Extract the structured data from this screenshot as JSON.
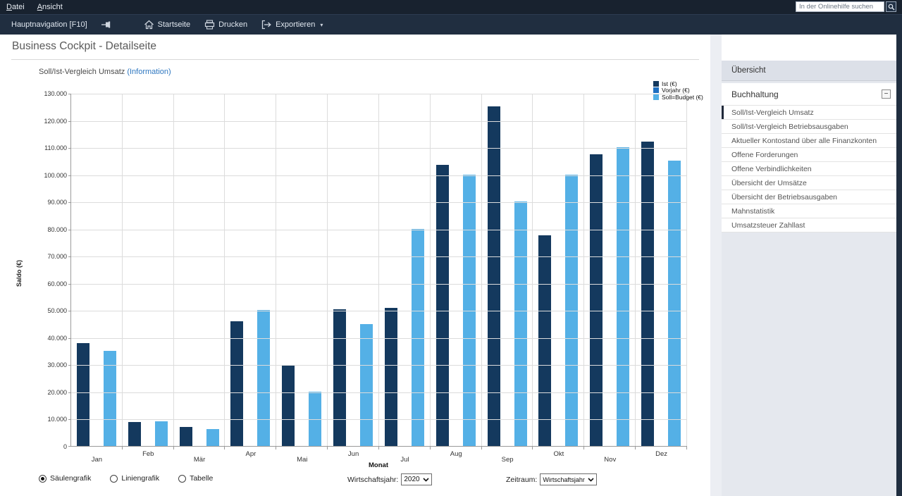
{
  "menu": {
    "items": [
      "Datei",
      "Ansicht"
    ]
  },
  "search": {
    "placeholder": "In der Onlinehilfe suchen",
    "icon": "magnifier-icon"
  },
  "toolbar": {
    "hauptnavigation": "Hauptnavigation [F10]",
    "startseite": "Startseite",
    "drucken": "Drucken",
    "exportieren": "Exportieren",
    "caret": "▾"
  },
  "page": {
    "title": "Business Cockpit - Detailseite"
  },
  "chart_header": {
    "title": "Soll/Ist-Vergleich Umsatz",
    "info_link": "(Information)"
  },
  "chart_data": {
    "type": "bar",
    "title": "Soll/Ist-Vergleich Umsatz",
    "categories": [
      "Jan",
      "Feb",
      "Mär",
      "Apr",
      "Mai",
      "Jun",
      "Jul",
      "Aug",
      "Sep",
      "Okt",
      "Nov",
      "Dez"
    ],
    "series": [
      {
        "name": "Ist (€)",
        "color": "#14395e",
        "values": [
          37800,
          8700,
          7000,
          46000,
          29500,
          50300,
          50800,
          103500,
          125000,
          77500,
          107500,
          112000
        ]
      },
      {
        "name": "Vorjahr (€)",
        "color": "#1e6fc0",
        "values": [
          0,
          0,
          0,
          0,
          0,
          0,
          0,
          0,
          0,
          0,
          0,
          0
        ]
      },
      {
        "name": "Soll=Budget (€)",
        "color": "#54b0e6",
        "values": [
          35000,
          9200,
          6200,
          50000,
          20000,
          45000,
          80000,
          100000,
          90000,
          100000,
          110000,
          105000
        ]
      }
    ],
    "xlabel": "Monat",
    "ylabel": "Saldo (€)",
    "ylim": [
      0,
      130000
    ],
    "ytick_step": 10000,
    "grid": true,
    "legend_position": "top-right"
  },
  "controls": {
    "view_options": [
      {
        "label": "Säulengrafik",
        "selected": true
      },
      {
        "label": "Liniengrafik",
        "selected": false
      },
      {
        "label": "Tabelle",
        "selected": false
      }
    ],
    "wirtschaftsjahr_label": "Wirtschaftsjahr:",
    "wirtschaftsjahr_value": "2020",
    "zeitraum_label": "Zeitraum:",
    "zeitraum_value": "Wirtschaftsjahr"
  },
  "sidebar": {
    "header": "Übersicht",
    "group": {
      "label": "Buchhaltung",
      "collapse_glyph": "−"
    },
    "items": [
      {
        "label": "Soll/Ist-Vergleich Umsatz",
        "selected": true
      },
      {
        "label": "Soll/Ist-Vergleich Betriebsausgaben",
        "selected": false
      },
      {
        "label": "Aktueller Kontostand über alle Finanzkonten",
        "selected": false
      },
      {
        "label": "Offene Forderungen",
        "selected": false
      },
      {
        "label": "Offene Verbindlichkeiten",
        "selected": false
      },
      {
        "label": "Übersicht der Umsätze",
        "selected": false
      },
      {
        "label": "Übersicht der Betriebsausgaben",
        "selected": false
      },
      {
        "label": "Mahnstatistik",
        "selected": false
      },
      {
        "label": "Umsatzsteuer Zahllast",
        "selected": false
      }
    ]
  }
}
